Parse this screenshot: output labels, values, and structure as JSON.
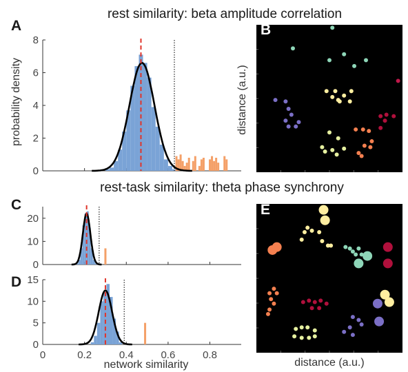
{
  "titles": {
    "rest": "rest similarity: beta amplitude correlation",
    "rest_task": "rest-task similarity: theta phase synchrony"
  },
  "panel_labels": {
    "A": "A",
    "B": "B",
    "C": "C",
    "D": "D",
    "E": "E"
  },
  "axis_labels": {
    "A_ylabel": "probability density",
    "x_shared": "network similarity",
    "B_ylabel": "distance (a.u.)",
    "E_xlabel": "distance (a.u.)"
  },
  "colors": {
    "null_hist": "#7aa3d6",
    "density_curve": "#000000",
    "mean_line": "#e0352b",
    "threshold_line": "#222222",
    "observed": "#f4a068",
    "panel_bg": "#000000"
  },
  "chart_data": [
    {
      "panel": "A",
      "type": "bar",
      "xlim": [
        0,
        0.95
      ],
      "ylim": [
        0,
        8
      ],
      "yticks": [
        "0",
        "2",
        "4",
        "6",
        "8"
      ],
      "xticks": [
        "0",
        "0.2",
        "0.4",
        "0.6",
        "0.8"
      ],
      "null_histogram": {
        "bins": [
          0.3,
          0.32,
          0.34,
          0.36,
          0.38,
          0.4,
          0.42,
          0.44,
          0.46,
          0.48,
          0.5,
          0.52,
          0.54,
          0.56,
          0.58,
          0.6,
          0.62
        ],
        "values": [
          0.1,
          0.2,
          0.6,
          1.3,
          2.4,
          3.7,
          5.2,
          6.4,
          7.1,
          6.6,
          5.7,
          3.9,
          2.7,
          1.6,
          0.7,
          0.3,
          0.1
        ]
      },
      "density_curve": {
        "type": "line",
        "mean": 0.475,
        "sd": 0.06,
        "peak": 6.6
      },
      "null_mean": 0.47,
      "threshold": 0.63,
      "observed_values": [
        0.64,
        0.65,
        0.66,
        0.67,
        0.68,
        0.69,
        0.7,
        0.72,
        0.73,
        0.75,
        0.76,
        0.77,
        0.8,
        0.81,
        0.82,
        0.83,
        0.84,
        0.87,
        0.88
      ],
      "observed_heights": [
        0.9,
        0.7,
        1.0,
        0.6,
        0.3,
        0.5,
        0.8,
        0.6,
        0.9,
        0.3,
        0.7,
        0.8,
        0.7,
        0.9,
        0.6,
        0.8,
        0.5,
        0.9,
        0.7
      ]
    },
    {
      "panel": "C",
      "type": "bar",
      "xlim": [
        0,
        0.95
      ],
      "ylim": [
        0,
        25
      ],
      "yticks": [
        "0",
        "10",
        "20"
      ],
      "null_histogram": {
        "bins": [
          0.16,
          0.17,
          0.18,
          0.19,
          0.2,
          0.21,
          0.22,
          0.23,
          0.24,
          0.25
        ],
        "values": [
          0.5,
          2,
          7,
          17,
          22,
          23,
          16,
          7,
          2,
          0.5
        ]
      },
      "density_curve": {
        "type": "line",
        "mean": 0.21,
        "sd": 0.018,
        "peak": 22
      },
      "null_mean": 0.21,
      "threshold": 0.27,
      "observed_values": [
        0.3
      ],
      "observed_heights": [
        7
      ]
    },
    {
      "panel": "D",
      "type": "bar",
      "xlim": [
        0,
        0.95
      ],
      "ylim": [
        0,
        15
      ],
      "yticks": [
        "0",
        "5",
        "10",
        "15"
      ],
      "xticks": [
        "0",
        "0.2",
        "0.4",
        "0.6",
        "0.8"
      ],
      "null_histogram": {
        "bins": [
          0.23,
          0.245,
          0.26,
          0.275,
          0.29,
          0.305,
          0.32,
          0.335,
          0.35,
          0.365
        ],
        "values": [
          0.5,
          2,
          5,
          10,
          12,
          14,
          11,
          6,
          3,
          0.5
        ]
      },
      "density_curve": {
        "type": "line",
        "mean": 0.3,
        "sd": 0.032,
        "peak": 12.5
      },
      "null_mean": 0.3,
      "threshold": 0.39,
      "observed_values": [
        0.49
      ],
      "observed_heights": [
        5
      ]
    },
    {
      "panel": "B",
      "type": "scatter",
      "xlim": [
        0,
        1
      ],
      "ylim": [
        0,
        1
      ],
      "series": [
        {
          "color": "#8ed6b8",
          "x": [
            0.52,
            0.25,
            0.5,
            0.6,
            0.67,
            0.75
          ],
          "y": [
            0.98,
            0.84,
            0.76,
            0.8,
            0.72,
            0.76
          ],
          "r": [
            3,
            3,
            3,
            3,
            3,
            3
          ]
        },
        {
          "color": "#ffeea0",
          "x": [
            0.48,
            0.52,
            0.56,
            0.54,
            0.6,
            0.64,
            0.57,
            0.65
          ],
          "y": [
            0.55,
            0.51,
            0.49,
            0.55,
            0.52,
            0.48,
            0.48,
            0.55
          ],
          "r": [
            3,
            3,
            3,
            3,
            3,
            3,
            3,
            3
          ]
        },
        {
          "color": "#7b6fc6",
          "x": [
            0.13,
            0.2,
            0.22,
            0.24,
            0.2,
            0.22,
            0.27,
            0.29
          ],
          "y": [
            0.49,
            0.48,
            0.43,
            0.39,
            0.35,
            0.31,
            0.31,
            0.34
          ],
          "r": [
            3,
            3,
            3,
            3,
            3,
            3,
            3,
            3
          ]
        },
        {
          "color": "#e6f0a0",
          "x": [
            0.5,
            0.45,
            0.47,
            0.52,
            0.55,
            0.6,
            0.56
          ],
          "y": [
            0.27,
            0.17,
            0.14,
            0.15,
            0.12,
            0.16,
            0.23
          ],
          "r": [
            3,
            3,
            3,
            3,
            3,
            3,
            3
          ]
        },
        {
          "color": "#f48050",
          "x": [
            0.68,
            0.73,
            0.77,
            0.79,
            0.74,
            0.78,
            0.7,
            0.72
          ],
          "y": [
            0.29,
            0.29,
            0.28,
            0.21,
            0.18,
            0.17,
            0.13,
            0.11
          ],
          "r": [
            3,
            3,
            3,
            3,
            3,
            3,
            3,
            3
          ]
        },
        {
          "color": "#b0103c",
          "x": [
            0.85,
            0.89,
            0.94,
            0.88,
            0.85
          ],
          "y": [
            0.38,
            0.39,
            0.38,
            0.35,
            0.3
          ],
          "r": [
            3,
            3,
            3,
            3,
            3
          ]
        },
        {
          "color": "#c0184a",
          "x": [
            0.97
          ],
          "y": [
            0.62
          ],
          "r": [
            3
          ]
        }
      ]
    },
    {
      "panel": "E",
      "type": "scatter",
      "xlim": [
        0,
        1
      ],
      "ylim": [
        0,
        1
      ],
      "series": [
        {
          "color": "#ffeea0",
          "x": [
            0.46,
            0.47,
            0.43,
            0.38,
            0.35,
            0.33,
            0.31,
            0.45,
            0.49,
            0.51
          ],
          "y": [
            0.96,
            0.89,
            0.81,
            0.82,
            0.84,
            0.81,
            0.76,
            0.75,
            0.72,
            0.72
          ],
          "r": [
            7,
            7,
            3,
            3,
            3,
            3,
            3,
            3,
            3,
            3
          ]
        },
        {
          "color": "#f48050",
          "x": [
            0.14,
            0.11,
            0.12,
            0.09,
            0.14,
            0.1,
            0.12,
            0.09,
            0.08
          ],
          "y": [
            0.71,
            0.69,
            0.43,
            0.4,
            0.4,
            0.36,
            0.33,
            0.29,
            0.26
          ],
          "r": [
            7,
            7,
            3,
            3,
            3,
            3,
            3,
            3,
            3
          ]
        },
        {
          "color": "#8ed6b8",
          "x": [
            0.61,
            0.64,
            0.66,
            0.68,
            0.7,
            0.72,
            0.76,
            0.7
          ],
          "y": [
            0.71,
            0.7,
            0.68,
            0.66,
            0.7,
            0.66,
            0.65,
            0.6
          ],
          "r": [
            3,
            3,
            3,
            3,
            3,
            3,
            7,
            7
          ]
        },
        {
          "color": "#b0103c",
          "x": [
            0.9,
            0.9,
            0.32,
            0.36,
            0.4,
            0.44,
            0.48,
            0.38,
            0.43
          ],
          "y": [
            0.71,
            0.6,
            0.34,
            0.35,
            0.34,
            0.35,
            0.33,
            0.3,
            0.3
          ],
          "r": [
            7,
            7,
            3,
            3,
            3,
            3,
            3,
            3,
            3
          ]
        },
        {
          "color": "#ffeea0",
          "x": [
            0.88,
            0.91
          ],
          "y": [
            0.39,
            0.34
          ],
          "r": [
            7,
            7
          ]
        },
        {
          "color": "#7b6fc6",
          "x": [
            0.83,
            0.84,
            0.66,
            0.7,
            0.72,
            0.64,
            0.6,
            0.66
          ],
          "y": [
            0.33,
            0.21,
            0.24,
            0.22,
            0.19,
            0.17,
            0.14,
            0.12
          ],
          "r": [
            7,
            7,
            3,
            3,
            3,
            3,
            3,
            3
          ]
        },
        {
          "color": "#e6f0a0",
          "x": [
            0.27,
            0.31,
            0.35,
            0.4,
            0.26,
            0.31,
            0.36,
            0.4
          ],
          "y": [
            0.16,
            0.17,
            0.17,
            0.15,
            0.11,
            0.1,
            0.1,
            0.11
          ],
          "r": [
            3,
            3,
            3,
            3,
            3,
            3,
            3,
            3
          ]
        }
      ]
    }
  ]
}
